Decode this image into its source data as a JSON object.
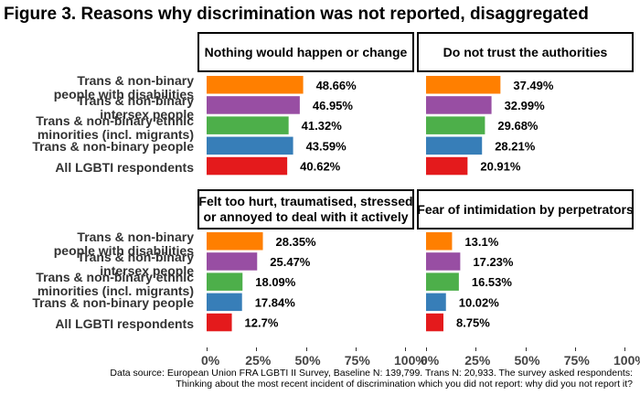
{
  "title": "Figure 3. Reasons why discrimination was not reported, disaggregated",
  "footnote_line1": "Data source: European Union FRA LGBTI II Survey, Baseline N: 139,799. Trans N: 20,933. The survey asked respondents:",
  "footnote_line2": "Thinking about the most recent incident of discrimination which you did not report: why did you not report it?",
  "colors": {
    "Trans & non-binary people with disabilities": "#ff7f00",
    "Trans & non-binary intersex people": "#984ea3",
    "Trans & non-binary ethnic minorities (incl. migrants)": "#4daf4a",
    "Trans & non-binary people": "#377eb8",
    "All LGBTI respondents": "#e41a1c"
  },
  "chart_data": {
    "type": "bar",
    "orientation": "horizontal",
    "categories": [
      "Trans & non-binary people with disabilities",
      "Trans & non-binary intersex people",
      "Trans & non-binary ethnic minorities (incl. migrants)",
      "Trans & non-binary people",
      "All LGBTI respondents"
    ],
    "category_labels": [
      [
        "Trans & non-binary",
        "people with disabilities"
      ],
      [
        "Trans & non-binary",
        "intersex people"
      ],
      [
        "Trans & non-binary ethnic",
        "minorities (incl. migrants)"
      ],
      [
        "Trans & non-binary people"
      ],
      [
        "All LGBTI respondents"
      ]
    ],
    "xlim": [
      0,
      100
    ],
    "x_ticks": [
      "0%",
      "25%",
      "50%",
      "75%",
      "100%"
    ],
    "grid": false,
    "panels": [
      {
        "strip": [
          "Nothing would happen or change"
        ],
        "values": [
          48.66,
          46.95,
          41.32,
          43.59,
          40.62
        ],
        "labels": [
          "48.66%",
          "46.95%",
          "41.32%",
          "43.59%",
          "40.62%"
        ]
      },
      {
        "strip": [
          "Do not trust the authorities"
        ],
        "values": [
          37.49,
          32.99,
          29.68,
          28.21,
          20.91
        ],
        "labels": [
          "37.49%",
          "32.99%",
          "29.68%",
          "28.21%",
          "20.91%"
        ]
      },
      {
        "strip": [
          "Felt too hurt, traumatised, stressed",
          "or annoyed to deal with it actively"
        ],
        "values": [
          28.35,
          25.47,
          18.09,
          17.84,
          12.7
        ],
        "labels": [
          "28.35%",
          "25.47%",
          "18.09%",
          "17.84%",
          "12.7%"
        ]
      },
      {
        "strip": [
          "Fear of intimidation by perpetrators"
        ],
        "values": [
          13.1,
          17.23,
          16.53,
          10.02,
          8.75
        ],
        "labels": [
          "13.1%",
          "17.23%",
          "16.53%",
          "10.02%",
          "8.75%"
        ]
      }
    ]
  }
}
